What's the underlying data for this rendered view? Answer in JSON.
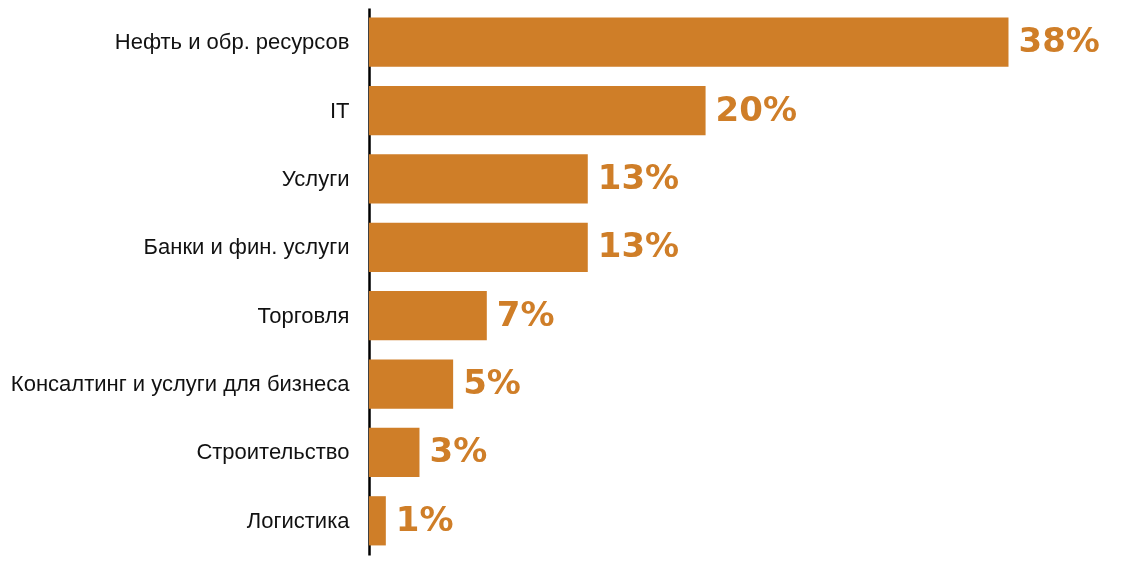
{
  "chart_data": {
    "type": "bar",
    "orientation": "horizontal",
    "categories": [
      "Нефть и обр. ресурсов",
      "IT",
      "Услуги",
      "Банки и фин. услуги",
      "Торговля",
      "Консалтинг и услуги для бизнеса",
      "Строительство",
      "Логистика"
    ],
    "values": [
      38,
      20,
      13,
      13,
      7,
      5,
      3,
      1
    ],
    "value_labels": [
      "38%",
      "20%",
      "13%",
      "13%",
      "7%",
      "5%",
      "3%",
      "1%"
    ],
    "color": "#cf7e28"
  }
}
